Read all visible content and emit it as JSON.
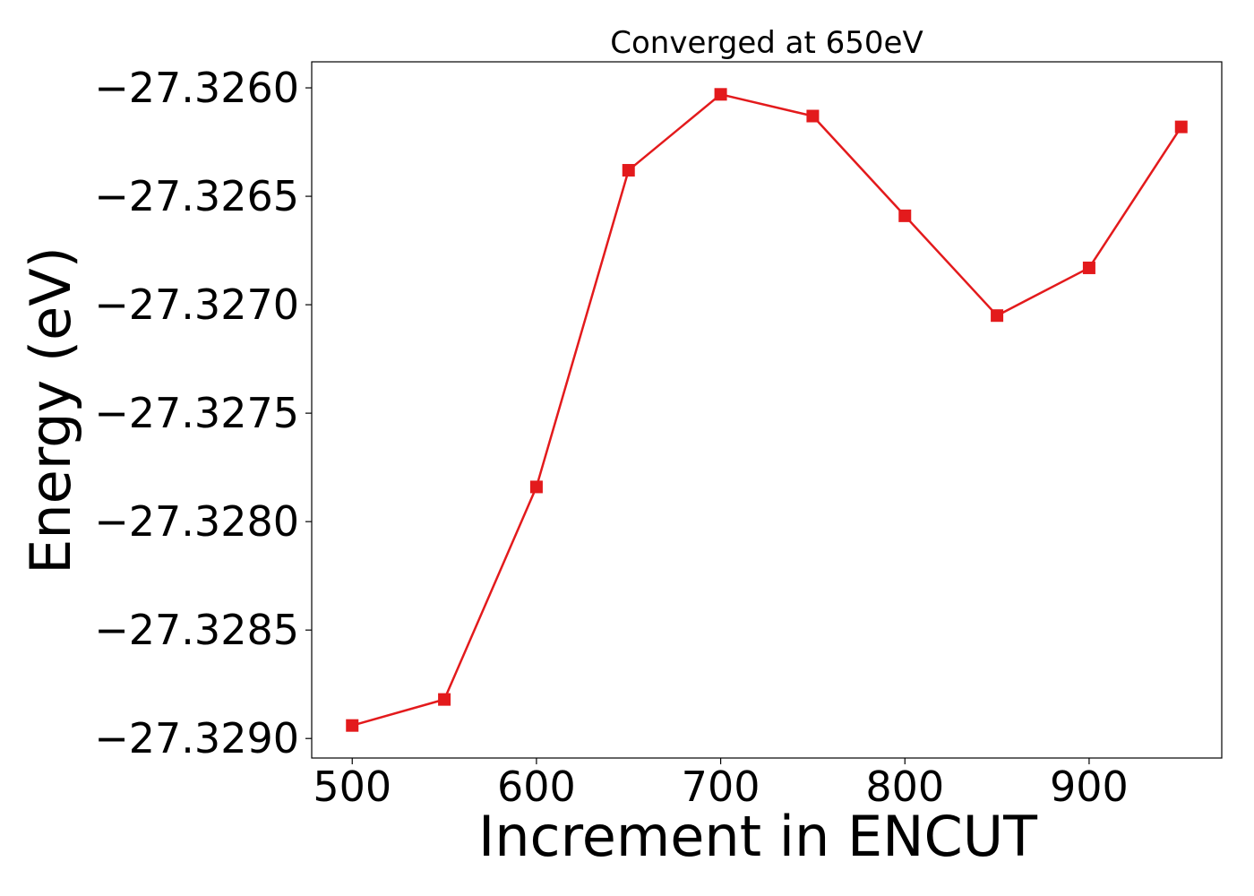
{
  "chart_data": {
    "type": "line",
    "title": "Converged at 650eV",
    "xlabel": "Increment in ENCUT",
    "ylabel": "Energy (eV)",
    "xlim": [
      478,
      972
    ],
    "ylim": [
      -27.32909,
      -27.32588
    ],
    "x_ticks": [
      500,
      600,
      700,
      800,
      900
    ],
    "x_tick_labels": [
      "500",
      "600",
      "700",
      "800",
      "900"
    ],
    "y_ticks": [
      -27.326,
      -27.3265,
      -27.327,
      -27.3275,
      -27.328,
      -27.3285,
      -27.329
    ],
    "y_tick_labels": [
      "−27.3260",
      "−27.3265",
      "−27.3270",
      "−27.3275",
      "−27.3280",
      "−27.3285",
      "−27.3290"
    ],
    "grid": false,
    "series": [
      {
        "color": "#e31a1c",
        "marker": "square",
        "x": [
          500,
          550,
          600,
          650,
          700,
          750,
          800,
          850,
          900,
          950
        ],
        "y": [
          -27.32894,
          -27.32882,
          -27.32784,
          -27.32638,
          -27.32603,
          -27.32613,
          -27.32659,
          -27.32705,
          -27.32683,
          -27.32618
        ]
      }
    ]
  }
}
